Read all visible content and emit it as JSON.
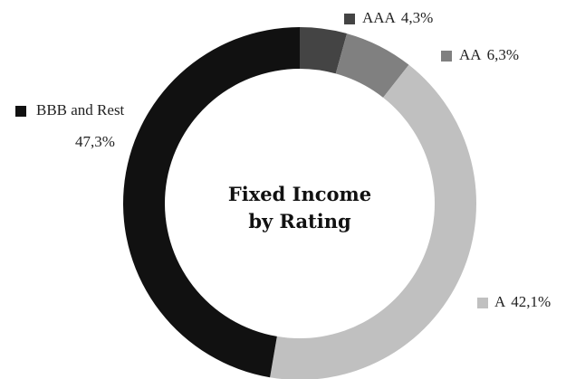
{
  "chart_data": {
    "type": "donut",
    "title": "Fixed Income by Rating",
    "categories": [
      "AAA",
      "AA",
      "A",
      "BBB and Rest"
    ],
    "values": [
      4.3,
      6.3,
      42.1,
      47.3
    ],
    "value_labels": [
      "4,3%",
      "6,3%",
      "42,1%",
      "47,3%"
    ],
    "colors": [
      "#444444",
      "#808080",
      "#c0c0c0",
      "#111111"
    ]
  }
}
